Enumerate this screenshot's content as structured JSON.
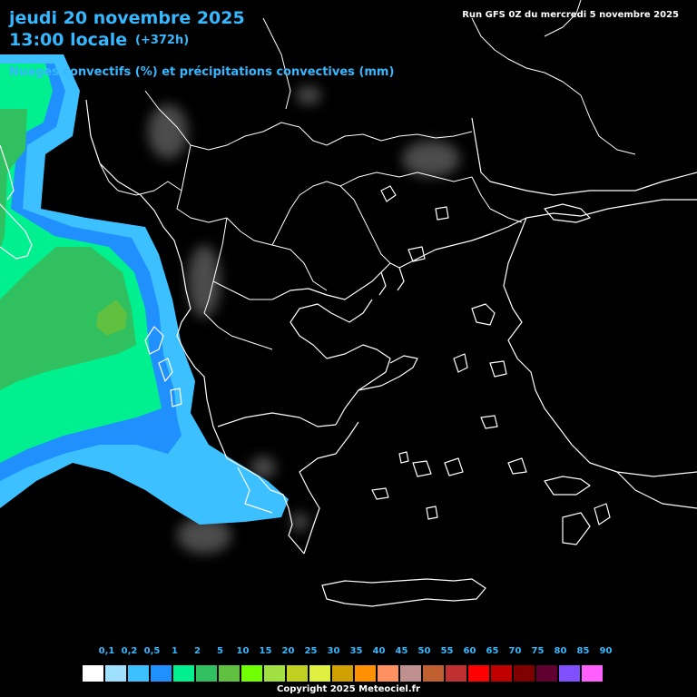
{
  "header": {
    "date": "jeudi 20 novembre 2025",
    "hour": "13:00 locale",
    "lead": "(+372h)",
    "subtitle": "Nuages convectifs (%) et précipitations convectives (mm)",
    "run": "Run GFS 0Z du mercredi 5 novembre 2025"
  },
  "legend": {
    "labels": [
      "0,1",
      "0,2",
      "0,5",
      "1",
      "2",
      "5",
      "10",
      "15",
      "20",
      "25",
      "30",
      "35",
      "40",
      "45",
      "50",
      "55",
      "60",
      "65",
      "70",
      "75",
      "80",
      "85",
      "90"
    ],
    "colors": [
      "#ffffff",
      "#a0e0ff",
      "#3cc0ff",
      "#2090ff",
      "#00f090",
      "#30c060",
      "#60c040",
      "#70ff00",
      "#a0e040",
      "#c0d020",
      "#e0f040",
      "#d0a000",
      "#ff9000",
      "#ff9060",
      "#c09090",
      "#c06030",
      "#c03030",
      "#ff0000",
      "#c00000",
      "#800000",
      "#600030",
      "#8050ff",
      "#ff60ff"
    ]
  },
  "footer": {
    "copyright": "Copyright 2025 Meteociel.fr"
  }
}
